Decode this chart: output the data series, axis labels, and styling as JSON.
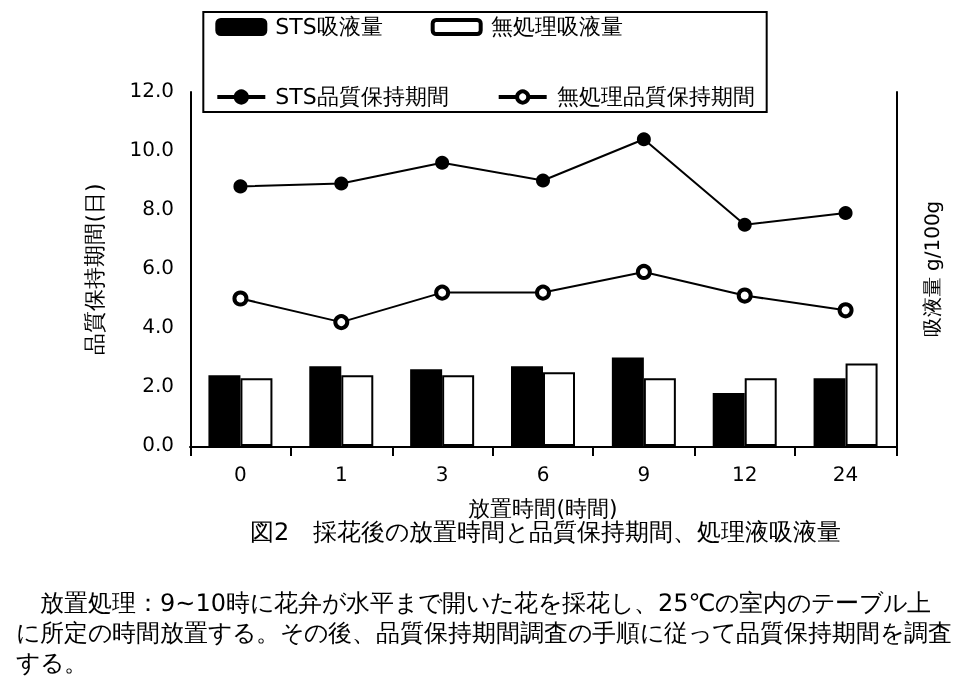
{
  "chart_data": {
    "type": "bar",
    "xlabel": "放置時間(時間)",
    "ylabel": "品質保持期間(日)",
    "y2label": "吸液量 g/100g",
    "categories": [
      "0",
      "1",
      "3",
      "6",
      "9",
      "12",
      "24"
    ],
    "series": [
      {
        "name": "STS吸液量",
        "color": "#000000",
        "values": [
          2.4,
          2.7,
          2.6,
          2.7,
          3.0,
          1.8,
          2.3
        ]
      },
      {
        "name": "無処理吸液量",
        "color": "#ffffff",
        "values": [
          2.3,
          2.4,
          2.4,
          2.5,
          2.3,
          2.3,
          2.8
        ]
      },
      {
        "name": "STS品質保持期間",
        "type": "line",
        "color": "#000000",
        "values": [
          8.8,
          8.9,
          9.6,
          9.0,
          10.4,
          7.5,
          7.9
        ]
      },
      {
        "name": "無処理品質保持期間",
        "type": "line",
        "color": "#000000",
        "marker": "open circle",
        "values": [
          5.0,
          4.2,
          5.2,
          5.2,
          5.9,
          5.1,
          4.6
        ]
      }
    ],
    "ylim": [
      0,
      12
    ],
    "yticks": [
      {
        "value": 0,
        "label": "0.0"
      },
      {
        "value": 2,
        "label": "2.0"
      },
      {
        "value": 4,
        "label": "4.0"
      },
      {
        "value": 6,
        "label": "6.0"
      },
      {
        "value": 8,
        "label": "8.0"
      },
      {
        "value": 10,
        "label": "10.0"
      },
      {
        "value": 12,
        "label": "12.0"
      }
    ],
    "grid": false,
    "legend": "top",
    "marker": "circle",
    "line_style": "solid",
    "annotations": [
      "図2　採花後の放置時間と品質保持期間、処理液吸液量",
      "　放置処理：9~10時に花弁が水平まで開いた花を採花し、25℃の室内のテーブル上に所定の時間放置する。その後、品質保持期間調査の手順に従って品質保持期間を調査する。"
    ]
  }
}
